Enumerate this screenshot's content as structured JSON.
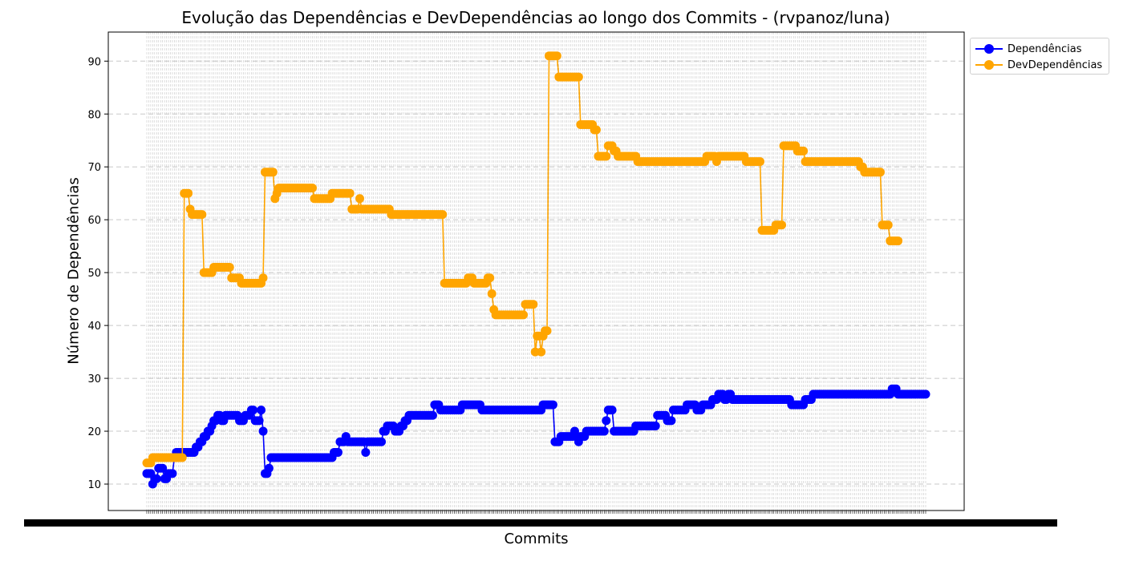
{
  "chart_data": {
    "type": "line",
    "title": "Evolução das Dependências e DevDependências ao longo dos Commits - (rvpanoz/luna)",
    "xlabel": "Commits",
    "ylabel": "Número de Dependências",
    "ylim": [
      5,
      95.5
    ],
    "yticks": [
      10,
      20,
      30,
      40,
      50,
      60,
      70,
      80,
      90
    ],
    "grid": true,
    "legend_position": "outside-top-right",
    "series": [
      {
        "name": "Dependências",
        "color": "#0000ff",
        "values": [
          12,
          12,
          12,
          10,
          11,
          11,
          13,
          13,
          13,
          11,
          11,
          12,
          12,
          12,
          15,
          16,
          16,
          16,
          16,
          16,
          16,
          16,
          16,
          16,
          16,
          17,
          17,
          18,
          18,
          19,
          19,
          20,
          20,
          21,
          22,
          22,
          23,
          23,
          22,
          22,
          23,
          23,
          23,
          23,
          23,
          23,
          23,
          22,
          22,
          22,
          23,
          23,
          23,
          24,
          24,
          22,
          22,
          22,
          24,
          20,
          12,
          12,
          13,
          15,
          15,
          15,
          15,
          15,
          15,
          15,
          15,
          15,
          15,
          15,
          15,
          15,
          15,
          15,
          15,
          15,
          15,
          15,
          15,
          15,
          15,
          15,
          15,
          15,
          15,
          15,
          15,
          15,
          15,
          15,
          15,
          16,
          16,
          16,
          18,
          18,
          18,
          19,
          18,
          18,
          18,
          18,
          18,
          18,
          18,
          18,
          18,
          16,
          18,
          18,
          18,
          18,
          18,
          18,
          18,
          18,
          20,
          20,
          21,
          21,
          21,
          21,
          20,
          20,
          20,
          21,
          21,
          22,
          22,
          23,
          23,
          23,
          23,
          23,
          23,
          23,
          23,
          23,
          23,
          23,
          23,
          23,
          25,
          25,
          25,
          24,
          24,
          24,
          24,
          24,
          24,
          24,
          24,
          24,
          24,
          24,
          25,
          25,
          25,
          25,
          25,
          25,
          25,
          25,
          25,
          25,
          24,
          24,
          24,
          24,
          24,
          24,
          24,
          24,
          24,
          24,
          24,
          24,
          24,
          24,
          24,
          24,
          24,
          24,
          24,
          24,
          24,
          24,
          24,
          24,
          24,
          24,
          24,
          24,
          24,
          24,
          24,
          25,
          25,
          25,
          25,
          25,
          25,
          18,
          18,
          18,
          19,
          19,
          19,
          19,
          19,
          19,
          19,
          20,
          19,
          18,
          19,
          19,
          19,
          20,
          20,
          20,
          20,
          20,
          20,
          20,
          20,
          20,
          20,
          22,
          24,
          24,
          24,
          20,
          20,
          20,
          20,
          20,
          20,
          20,
          20,
          20,
          20,
          20,
          21,
          21,
          21,
          21,
          21,
          21,
          21,
          21,
          21,
          21,
          21,
          23,
          23,
          23,
          23,
          23,
          22,
          22,
          22,
          24,
          24,
          24,
          24,
          24,
          24,
          24,
          25,
          25,
          25,
          25,
          25,
          24,
          24,
          24,
          25,
          25,
          25,
          25,
          25,
          26,
          26,
          26,
          27,
          27,
          27,
          26,
          26,
          27,
          27,
          26,
          26,
          26,
          26,
          26,
          26,
          26,
          26,
          26,
          26,
          26,
          26,
          26,
          26,
          26,
          26,
          26,
          26,
          26,
          26,
          26,
          26,
          26,
          26,
          26,
          26,
          26,
          26,
          26,
          26,
          25,
          25,
          25,
          25,
          25,
          25,
          25,
          26,
          26,
          26,
          26,
          27,
          27,
          27,
          27,
          27,
          27,
          27,
          27,
          27,
          27,
          27,
          27,
          27,
          27,
          27,
          27,
          27,
          27,
          27,
          27,
          27,
          27,
          27,
          27,
          27,
          27,
          27,
          27,
          27,
          27,
          27,
          27,
          27,
          27,
          27,
          27,
          27,
          27,
          27,
          27,
          28,
          28,
          28,
          27,
          27,
          27,
          27,
          27,
          27,
          27,
          27,
          27,
          27,
          27,
          27,
          27,
          27,
          27
        ]
      },
      {
        "name": "DevDependências",
        "color": "#ffa500",
        "values": [
          14,
          14,
          14,
          15,
          15,
          15,
          15,
          15,
          15,
          15,
          15,
          15,
          15,
          15,
          15,
          15,
          15,
          15,
          15,
          65,
          65,
          65,
          62,
          61,
          61,
          61,
          61,
          61,
          61,
          50,
          50,
          50,
          50,
          50,
          51,
          51,
          51,
          51,
          51,
          51,
          51,
          51,
          51,
          49,
          49,
          49,
          49,
          49,
          48,
          48,
          48,
          48,
          48,
          48,
          48,
          48,
          48,
          48,
          48,
          49,
          69,
          69,
          69,
          69,
          69,
          64,
          65,
          66,
          66,
          66,
          66,
          66,
          66,
          66,
          66,
          66,
          66,
          66,
          66,
          66,
          66,
          66,
          66,
          66,
          66,
          64,
          64,
          64,
          64,
          64,
          64,
          64,
          64,
          64,
          65,
          65,
          65,
          65,
          65,
          65,
          65,
          65,
          65,
          65,
          62,
          62,
          62,
          62,
          64,
          62,
          62,
          62,
          62,
          62,
          62,
          62,
          62,
          62,
          62,
          62,
          62,
          62,
          62,
          62,
          61,
          61,
          61,
          61,
          61,
          61,
          61,
          61,
          61,
          61,
          61,
          61,
          61,
          61,
          61,
          61,
          61,
          61,
          61,
          61,
          61,
          61,
          61,
          61,
          61,
          61,
          61,
          48,
          48,
          48,
          48,
          48,
          48,
          48,
          48,
          48,
          48,
          48,
          48,
          49,
          49,
          49,
          48,
          48,
          48,
          48,
          48,
          48,
          48,
          49,
          49,
          46,
          43,
          42,
          42,
          42,
          42,
          42,
          42,
          42,
          42,
          42,
          42,
          42,
          42,
          42,
          42,
          42,
          44,
          44,
          44,
          44,
          44,
          35,
          38,
          38,
          35,
          38,
          39,
          39,
          91,
          91,
          91,
          91,
          91,
          87,
          87,
          87,
          87,
          87,
          87,
          87,
          87,
          87,
          87,
          87,
          78,
          78,
          78,
          78,
          78,
          78,
          78,
          77,
          77,
          72,
          72,
          72,
          72,
          72,
          74,
          74,
          74,
          73,
          73,
          72,
          72,
          72,
          72,
          72,
          72,
          72,
          72,
          72,
          72,
          71,
          71,
          71,
          71,
          71,
          71,
          71,
          71,
          71,
          71,
          71,
          71,
          71,
          71,
          71,
          71,
          71,
          71,
          71,
          71,
          71,
          71,
          71,
          71,
          71,
          71,
          71,
          71,
          71,
          71,
          71,
          71,
          71,
          71,
          71,
          72,
          72,
          72,
          72,
          72,
          71,
          72,
          72,
          72,
          72,
          72,
          72,
          72,
          72,
          72,
          72,
          72,
          72,
          72,
          72,
          71,
          71,
          71,
          71,
          71,
          71,
          71,
          71,
          58,
          58,
          58,
          58,
          58,
          58,
          58,
          59,
          59,
          59,
          59,
          74,
          74,
          74,
          74,
          74,
          74,
          74,
          73,
          73,
          73,
          73,
          71,
          71,
          71,
          71,
          71,
          71,
          71,
          71,
          71,
          71,
          71,
          71,
          71,
          71,
          71,
          71,
          71,
          71,
          71,
          71,
          71,
          71,
          71,
          71,
          71,
          71,
          71,
          71,
          70,
          70,
          69,
          69,
          69,
          69,
          69,
          69,
          69,
          69,
          69,
          59,
          59,
          59,
          59,
          56,
          56,
          56,
          56,
          56
        ]
      }
    ]
  }
}
